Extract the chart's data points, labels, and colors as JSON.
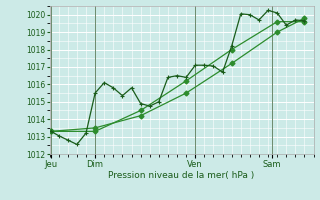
{
  "title": "Pression niveau de la mer( hPa )",
  "bg_color": "#cceae7",
  "plot_bg": "#cceae7",
  "grid_color": "#ffffff",
  "line_color_dark": "#1a5c1a",
  "line_color_mid": "#2d8c2d",
  "ylim": [
    1012,
    1020.5
  ],
  "yticks": [
    1012,
    1013,
    1014,
    1015,
    1016,
    1017,
    1018,
    1019,
    1020
  ],
  "xtick_labels": [
    "Jeu",
    "Dim",
    "Ven",
    "Sam"
  ],
  "xtick_positions": [
    0.08,
    2.5,
    8.0,
    12.2
  ],
  "vline_positions": [
    0.08,
    2.5,
    8.0,
    12.2
  ],
  "xlim": [
    0,
    14.5
  ],
  "series1": {
    "x": [
      0.08,
      0.5,
      1.0,
      1.5,
      2.0,
      2.5,
      3.0,
      3.5,
      4.0,
      4.5,
      5.0,
      5.5,
      6.0,
      6.5,
      7.0,
      7.5,
      8.0,
      8.5,
      9.0,
      9.5,
      10.0,
      10.5,
      11.0,
      11.5,
      12.0,
      12.5,
      13.0,
      13.5,
      14.0
    ],
    "y": [
      1013.3,
      1013.05,
      1012.8,
      1012.55,
      1013.2,
      1015.5,
      1016.1,
      1015.8,
      1015.35,
      1015.8,
      1014.9,
      1014.75,
      1015.0,
      1016.4,
      1016.5,
      1016.4,
      1017.1,
      1017.1,
      1017.05,
      1016.7,
      1018.2,
      1020.05,
      1020.0,
      1019.7,
      1020.25,
      1020.1,
      1019.4,
      1019.7,
      1019.65
    ]
  },
  "series2": {
    "x": [
      0.08,
      2.5,
      5.0,
      7.5,
      10.0,
      12.5,
      14.0
    ],
    "y": [
      1013.3,
      1013.3,
      1014.5,
      1016.2,
      1018.0,
      1019.6,
      1019.6
    ]
  },
  "series3": {
    "x": [
      0.08,
      2.5,
      5.0,
      7.5,
      10.0,
      12.5,
      14.0
    ],
    "y": [
      1013.3,
      1013.5,
      1014.2,
      1015.5,
      1017.2,
      1019.0,
      1019.8
    ]
  }
}
